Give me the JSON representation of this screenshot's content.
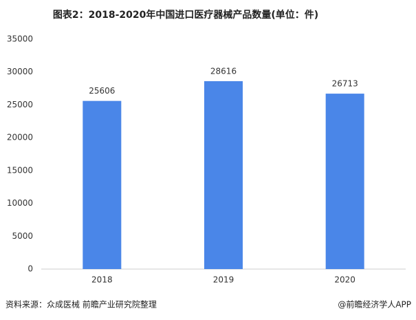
{
  "chart_data": {
    "type": "bar",
    "title": "图表2：2018-2020年中国进口医疗器械产品数量(单位：件)",
    "categories": [
      "2018",
      "2019",
      "2020"
    ],
    "values": [
      25606,
      28616,
      26713
    ],
    "color": "#4a86e8",
    "ylim": [
      0,
      35000
    ],
    "yticks": [
      0,
      5000,
      10000,
      15000,
      20000,
      25000,
      30000,
      35000
    ],
    "grid": false,
    "source": "资料来源：众成医械 前瞻产业研究院整理",
    "credit": "@前瞻经济学人APP"
  }
}
